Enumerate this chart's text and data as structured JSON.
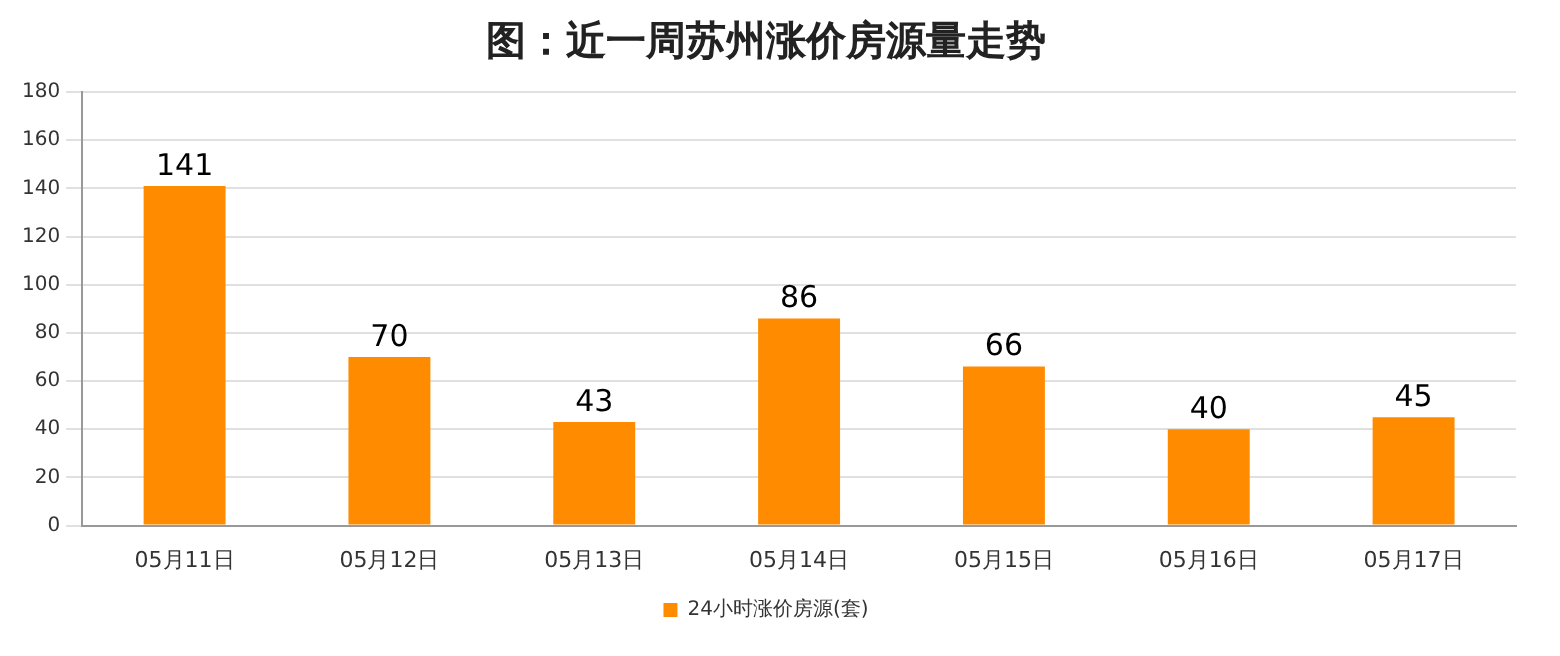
{
  "chart_data": {
    "type": "bar",
    "title": "图：近一周苏州涨价房源量走势",
    "categories": [
      "05月11日",
      "05月12日",
      "05月13日",
      "05月14日",
      "05月15日",
      "05月16日",
      "05月17日"
    ],
    "series": [
      {
        "name": "24小时涨价房源(套)",
        "color": "#ff8c00",
        "values": [
          141,
          70,
          43,
          86,
          66,
          40,
          45
        ]
      }
    ],
    "ylim": [
      0,
      180
    ],
    "yticks": [
      0,
      20,
      40,
      60,
      80,
      100,
      120,
      140,
      160,
      180
    ],
    "grid": "y",
    "legend": "bottom",
    "data_labels": true
  }
}
